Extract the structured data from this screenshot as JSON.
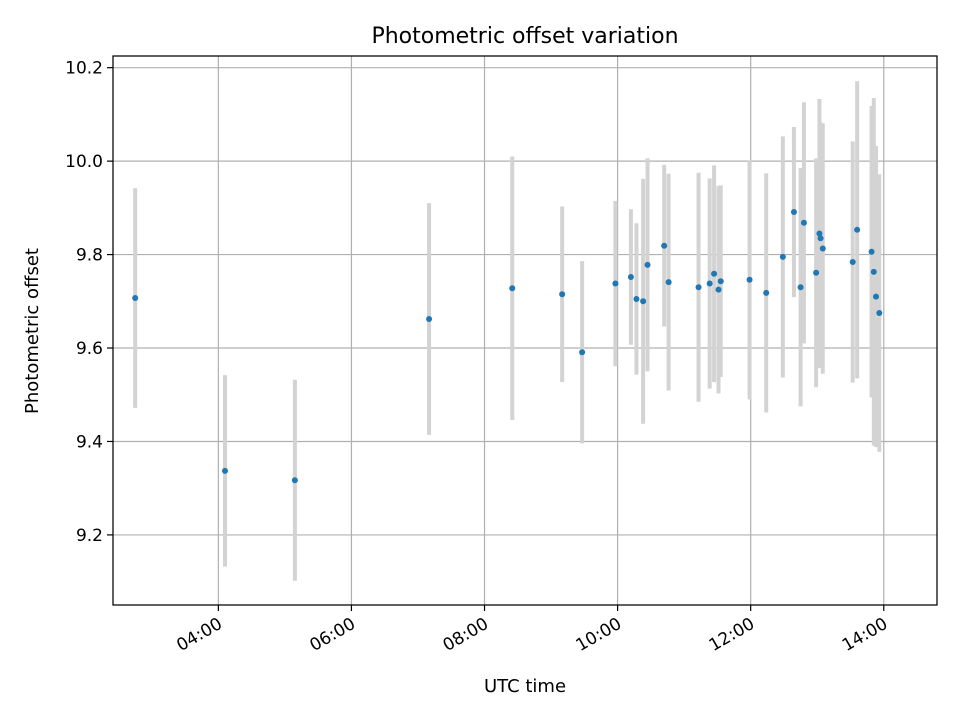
{
  "chart_data": {
    "type": "scatter",
    "title": "Photometric offset variation",
    "xlabel": "UTC time",
    "ylabel": "Photometric offset",
    "x_is_time": true,
    "xlim": [
      "02:25",
      "14:48"
    ],
    "ylim": [
      9.05,
      10.225
    ],
    "x_ticks": [
      "04:00",
      "06:00",
      "08:00",
      "10:00",
      "12:00",
      "14:00"
    ],
    "y_ticks": [
      "9.2",
      "9.4",
      "9.6",
      "9.8",
      "10.0",
      "10.2"
    ],
    "grid": true,
    "colors": {
      "point": "#1f77b4",
      "errorbar": "#d3d3d3",
      "grid": "#b0b0b0"
    },
    "points": [
      {
        "x": "02:45",
        "y": 9.707,
        "yerr": 0.235
      },
      {
        "x": "04:06",
        "y": 9.337,
        "yerr": 0.205
      },
      {
        "x": "05:09",
        "y": 9.317,
        "yerr": 0.215
      },
      {
        "x": "07:10",
        "y": 9.662,
        "yerr": 0.248
      },
      {
        "x": "08:25",
        "y": 9.728,
        "yerr": 0.282
      },
      {
        "x": "09:10",
        "y": 9.715,
        "yerr": 0.188
      },
      {
        "x": "09:28",
        "y": 9.591,
        "yerr": 0.195
      },
      {
        "x": "09:58",
        "y": 9.738,
        "yerr": 0.177
      },
      {
        "x": "10:12",
        "y": 9.752,
        "yerr": 0.145
      },
      {
        "x": "10:17",
        "y": 9.705,
        "yerr": 0.162
      },
      {
        "x": "10:23",
        "y": 9.7,
        "yerr": 0.262
      },
      {
        "x": "10:27",
        "y": 9.778,
        "yerr": 0.228
      },
      {
        "x": "10:42",
        "y": 9.819,
        "yerr": 0.173
      },
      {
        "x": "10:46",
        "y": 9.741,
        "yerr": 0.232
      },
      {
        "x": "11:13",
        "y": 9.73,
        "yerr": 0.245
      },
      {
        "x": "11:23",
        "y": 9.738,
        "yerr": 0.225
      },
      {
        "x": "11:27",
        "y": 9.759,
        "yerr": 0.232
      },
      {
        "x": "11:31",
        "y": 9.725,
        "yerr": 0.222
      },
      {
        "x": "11:33",
        "y": 9.743,
        "yerr": 0.205
      },
      {
        "x": "11:59",
        "y": 9.746,
        "yerr": 0.256
      },
      {
        "x": "12:14",
        "y": 9.718,
        "yerr": 0.256
      },
      {
        "x": "12:29",
        "y": 9.795,
        "yerr": 0.258
      },
      {
        "x": "12:39",
        "y": 9.891,
        "yerr": 0.182
      },
      {
        "x": "12:45",
        "y": 9.73,
        "yerr": 0.255
      },
      {
        "x": "12:48",
        "y": 9.868,
        "yerr": 0.258
      },
      {
        "x": "12:59",
        "y": 9.761,
        "yerr": 0.245
      },
      {
        "x": "13:02",
        "y": 9.845,
        "yerr": 0.288
      },
      {
        "x": "13:03",
        "y": 9.835,
        "yerr": 0.248
      },
      {
        "x": "13:05",
        "y": 9.813,
        "yerr": 0.268
      },
      {
        "x": "13:32",
        "y": 9.784,
        "yerr": 0.258
      },
      {
        "x": "13:36",
        "y": 9.853,
        "yerr": 0.318
      },
      {
        "x": "13:49",
        "y": 9.806,
        "yerr": 0.312
      },
      {
        "x": "13:51",
        "y": 9.763,
        "yerr": 0.372
      },
      {
        "x": "13:53",
        "y": 9.71,
        "yerr": 0.322
      },
      {
        "x": "13:56",
        "y": 9.675,
        "yerr": 0.297
      }
    ]
  }
}
